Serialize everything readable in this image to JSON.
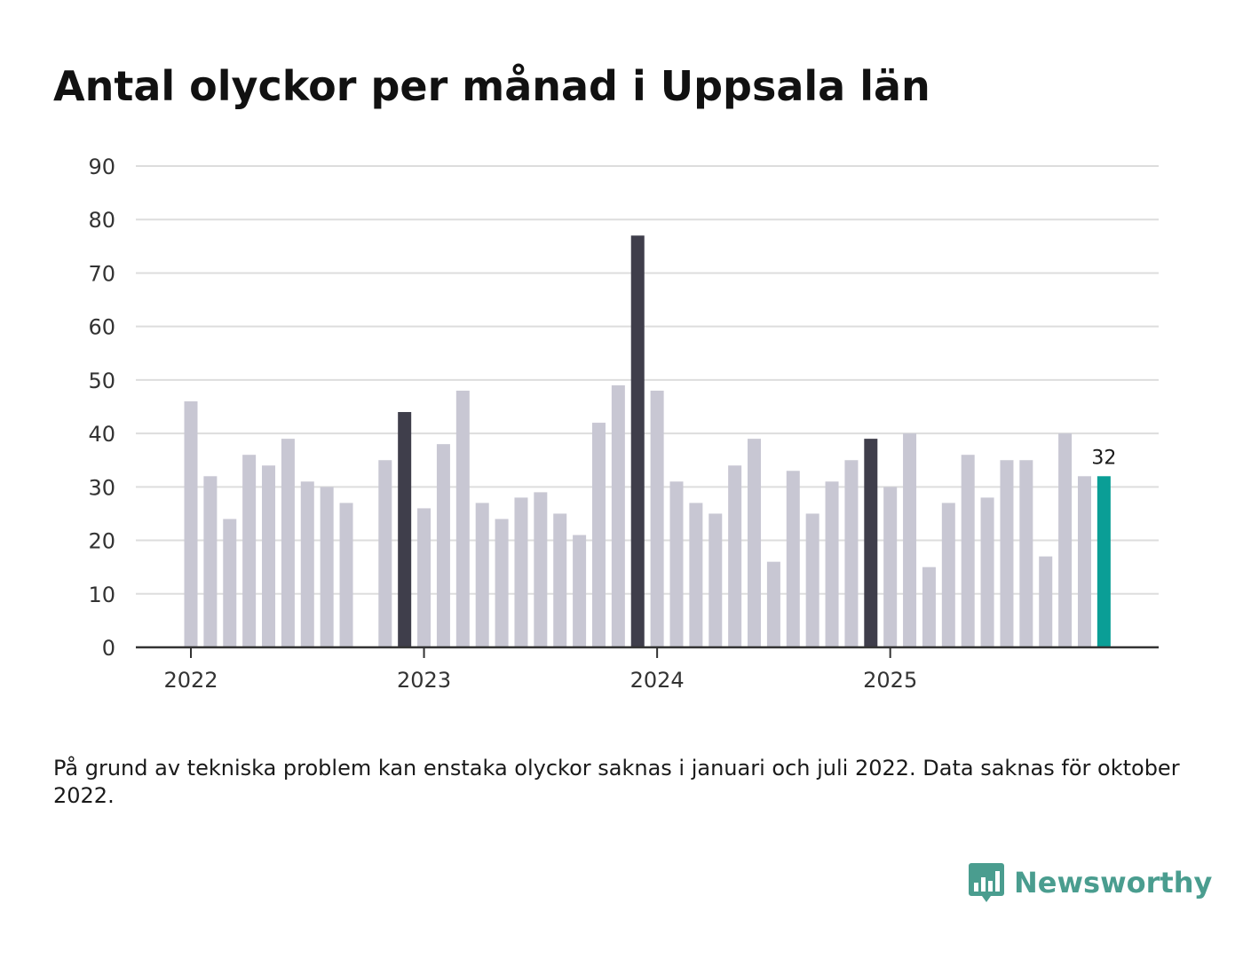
{
  "title": "Antal olyckor per månad i Uppsala län",
  "footnote": "På grund av tekniska problem kan enstaka olyckor saknas i januari och juli 2022. Data saknas för oktober 2022.",
  "brand": {
    "name": "Newsworthy",
    "color": "#4a9d8f"
  },
  "colors": {
    "default_bar": "#c8c7d3",
    "highlight_bar": "#3f3e4b",
    "latest_bar": "#0a9e96",
    "grid": "#dddddd",
    "axis": "#333333"
  },
  "chart_data": {
    "type": "bar",
    "title": "Antal olyckor per månad i Uppsala län",
    "xlabel": "",
    "ylabel": "",
    "ylim": [
      0,
      90
    ],
    "yticks": [
      0,
      10,
      20,
      30,
      40,
      50,
      60,
      70,
      80,
      90
    ],
    "xtick_labels": [
      {
        "label": "2022",
        "index": 0
      },
      {
        "label": "2023",
        "index": 12
      },
      {
        "label": "2024",
        "index": 24
      },
      {
        "label": "2025",
        "index": 36
      }
    ],
    "categories": [
      "2022-01",
      "2022-02",
      "2022-03",
      "2022-04",
      "2022-05",
      "2022-06",
      "2022-07",
      "2022-08",
      "2022-09",
      "2022-10",
      "2022-11",
      "2022-12",
      "2023-01",
      "2023-02",
      "2023-03",
      "2023-04",
      "2023-05",
      "2023-06",
      "2023-07",
      "2023-08",
      "2023-09",
      "2023-10",
      "2023-11",
      "2023-12",
      "2024-01",
      "2024-02",
      "2024-03",
      "2024-04",
      "2024-05",
      "2024-06",
      "2024-07",
      "2024-08",
      "2024-09",
      "2024-10",
      "2024-11",
      "2024-12",
      "2025-01",
      "2025-02",
      "2025-03",
      "2025-04",
      "2025-05",
      "2025-06",
      "2025-07",
      "2025-08",
      "2025-09",
      "2025-10",
      "2025-11",
      "2025-12"
    ],
    "values": [
      46,
      32,
      24,
      36,
      34,
      39,
      31,
      30,
      27,
      null,
      35,
      44,
      26,
      38,
      48,
      27,
      24,
      28,
      29,
      25,
      21,
      42,
      49,
      77,
      48,
      31,
      27,
      25,
      34,
      39,
      16,
      33,
      25,
      31,
      35,
      39,
      30,
      40,
      15,
      27,
      36,
      28,
      35,
      35,
      17,
      40,
      32,
      32
    ],
    "highlighted": [
      "2022-12",
      "2023-12",
      "2024-12"
    ],
    "latest_label": "32"
  }
}
